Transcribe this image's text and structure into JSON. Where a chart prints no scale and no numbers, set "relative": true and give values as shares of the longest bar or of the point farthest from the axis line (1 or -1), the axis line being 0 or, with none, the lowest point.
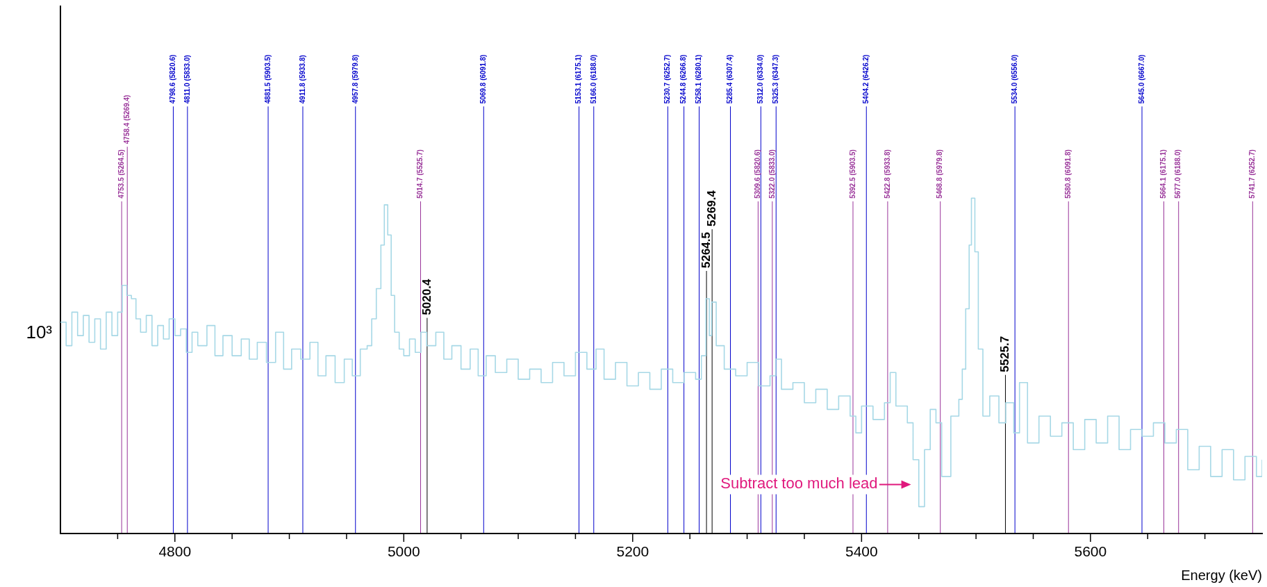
{
  "chart_data": {
    "type": "step",
    "xlabel": "Energy (keV)",
    "x": [
      4700,
      4705,
      4710,
      4715,
      4720,
      4725,
      4730,
      4735,
      4740,
      4745,
      4750,
      4754,
      4758,
      4762,
      4766,
      4770,
      4775,
      4780,
      4785,
      4790,
      4795,
      4800,
      4805,
      4810,
      4815,
      4820,
      4828,
      4835,
      4842,
      4850,
      4858,
      4865,
      4872,
      4880,
      4888,
      4895,
      4902,
      4910,
      4918,
      4925,
      4932,
      4940,
      4948,
      4955,
      4962,
      4968,
      4972,
      4976,
      4980,
      4983,
      4986,
      4989,
      4992,
      4996,
      5000,
      5005,
      5010,
      5015,
      5020,
      5028,
      5035,
      5042,
      5050,
      5058,
      5065,
      5072,
      5080,
      5090,
      5100,
      5110,
      5120,
      5130,
      5140,
      5150,
      5160,
      5168,
      5175,
      5185,
      5195,
      5205,
      5215,
      5225,
      5235,
      5245,
      5255,
      5260,
      5264,
      5267,
      5269,
      5273,
      5280,
      5290,
      5300,
      5310,
      5320,
      5325,
      5330,
      5340,
      5350,
      5360,
      5370,
      5380,
      5390,
      5395,
      5400,
      5410,
      5420,
      5425,
      5430,
      5440,
      5445,
      5450,
      5455,
      5460,
      5465,
      5470,
      5478,
      5485,
      5488,
      5491,
      5494,
      5496,
      5499,
      5502,
      5506,
      5512,
      5520,
      5526,
      5533,
      5538,
      5545,
      5555,
      5565,
      5575,
      5585,
      5595,
      5605,
      5615,
      5625,
      5635,
      5645,
      5655,
      5665,
      5675,
      5685,
      5695,
      5705,
      5715,
      5725,
      5735,
      5745,
      5750
    ],
    "series": [
      {
        "color": "#a6d8e6",
        "values": [
          0.63,
          0.56,
          0.66,
          0.59,
          0.65,
          0.57,
          0.64,
          0.55,
          0.66,
          0.59,
          0.66,
          0.74,
          0.71,
          0.7,
          0.64,
          0.6,
          0.65,
          0.56,
          0.62,
          0.58,
          0.64,
          0.59,
          0.61,
          0.54,
          0.6,
          0.56,
          0.62,
          0.53,
          0.59,
          0.53,
          0.58,
          0.52,
          0.57,
          0.51,
          0.6,
          0.49,
          0.55,
          0.52,
          0.57,
          0.47,
          0.53,
          0.45,
          0.52,
          0.47,
          0.55,
          0.56,
          0.64,
          0.73,
          0.86,
          0.98,
          0.89,
          0.71,
          0.6,
          0.55,
          0.53,
          0.58,
          0.54,
          0.6,
          0.56,
          0.6,
          0.52,
          0.56,
          0.49,
          0.55,
          0.47,
          0.53,
          0.48,
          0.52,
          0.46,
          0.49,
          0.45,
          0.51,
          0.47,
          0.54,
          0.49,
          0.55,
          0.46,
          0.51,
          0.44,
          0.48,
          0.43,
          0.49,
          0.45,
          0.48,
          0.46,
          0.53,
          0.7,
          0.59,
          0.69,
          0.56,
          0.49,
          0.47,
          0.51,
          0.44,
          0.47,
          0.52,
          0.43,
          0.45,
          0.39,
          0.43,
          0.37,
          0.41,
          0.35,
          0.3,
          0.38,
          0.34,
          0.39,
          0.48,
          0.38,
          0.33,
          0.22,
          0.08,
          0.25,
          0.37,
          0.33,
          0.17,
          0.35,
          0.4,
          0.49,
          0.67,
          0.86,
          1,
          0.84,
          0.55,
          0.35,
          0.41,
          0.33,
          0.39,
          0.3,
          0.45,
          0.27,
          0.35,
          0.29,
          0.33,
          0.25,
          0.34,
          0.27,
          0.35,
          0.25,
          0.31,
          0.29,
          0.33,
          0.27,
          0.31,
          0.19,
          0.26,
          0.17,
          0.25,
          0.16,
          0.23,
          0.17,
          0.22
        ]
      }
    ],
    "relative": true,
    "xlim": [
      4700,
      5750
    ],
    "xticks": [
      {
        "value": 4750,
        "label": null
      },
      4800,
      {
        "value": 4850,
        "label": null
      },
      {
        "value": 4900,
        "label": null
      },
      {
        "value": 4950,
        "label": null
      },
      5000,
      {
        "value": 5050,
        "label": null
      },
      {
        "value": 5100,
        "label": null
      },
      {
        "value": 5150,
        "label": null
      },
      5200,
      {
        "value": 5250,
        "label": null
      },
      {
        "value": 5300,
        "label": null
      },
      {
        "value": 5350,
        "label": null
      },
      5400,
      {
        "value": 5450,
        "label": null
      },
      {
        "value": 5500,
        "label": null
      },
      {
        "value": 5550,
        "label": null
      },
      5600,
      {
        "value": 5650,
        "label": null
      },
      {
        "value": 5700,
        "label": null
      }
    ],
    "grid": false,
    "legend": false,
    "marker": "none",
    "ref_lines": [
      {
        "axis": "x",
        "value": 4753.5,
        "label": "4753.5 (5264.5)",
        "color": "#993399"
      },
      {
        "axis": "x",
        "value": 4758.4,
        "label": "4758.4 (5269.4)",
        "color": "#993399"
      },
      {
        "axis": "x",
        "value": 4798.6,
        "label": "4798.6 (5820.6)",
        "color": "#0000cc"
      },
      {
        "axis": "x",
        "value": 4811.0,
        "label": "4811.0 (5833.0)",
        "color": "#0000cc"
      },
      {
        "axis": "x",
        "value": 4881.5,
        "label": "4881.5 (5903.5)",
        "color": "#0000cc"
      },
      {
        "axis": "x",
        "value": 4911.8,
        "label": "4911.8 (5933.8)",
        "color": "#0000cc"
      },
      {
        "axis": "x",
        "value": 4957.8,
        "label": "4957.8 (5979.8)",
        "color": "#0000cc"
      },
      {
        "axis": "x",
        "value": 5014.7,
        "label": "5014.7 (5525.7)",
        "color": "#993399"
      },
      {
        "axis": "x",
        "value": 5020.4,
        "label": "5020.4",
        "color": "#000000"
      },
      {
        "axis": "x",
        "value": 5069.8,
        "label": "5069.8 (6091.8)",
        "color": "#0000cc"
      },
      {
        "axis": "x",
        "value": 5153.1,
        "label": "5153.1 (6175.1)",
        "color": "#0000cc"
      },
      {
        "axis": "x",
        "value": 5166.0,
        "label": "5166.0 (6188.0)",
        "color": "#0000cc"
      },
      {
        "axis": "x",
        "value": 5230.7,
        "label": "5230.7 (6252.7)",
        "color": "#0000cc"
      },
      {
        "axis": "x",
        "value": 5244.8,
        "label": "5244.8 (6266.8)",
        "color": "#0000cc"
      },
      {
        "axis": "x",
        "value": 5258.1,
        "label": "5258.1 (6280.1)",
        "color": "#0000cc"
      },
      {
        "axis": "x",
        "value": 5264.5,
        "label": "5264.5",
        "color": "#000000"
      },
      {
        "axis": "x",
        "value": 5269.4,
        "label": "5269.4",
        "color": "#000000"
      },
      {
        "axis": "x",
        "value": 5285.4,
        "label": "5285.4 (6307.4)",
        "color": "#0000cc"
      },
      {
        "axis": "x",
        "value": 5309.6,
        "label": "5309.6 (5820.6)",
        "color": "#993399"
      },
      {
        "axis": "x",
        "value": 5312.0,
        "label": "5312.0 (6334.0)",
        "color": "#0000cc"
      },
      {
        "axis": "x",
        "value": 5322.0,
        "label": "5322.0 (5833.0)",
        "color": "#993399"
      },
      {
        "axis": "x",
        "value": 5325.3,
        "label": "5325.3 (6347.3)",
        "color": "#0000cc"
      },
      {
        "axis": "x",
        "value": 5392.5,
        "label": "5392.5 (5903.5)",
        "color": "#993399"
      },
      {
        "axis": "x",
        "value": 5404.2,
        "label": "5404.2 (6426.2)",
        "color": "#0000cc"
      },
      {
        "axis": "x",
        "value": 5422.8,
        "label": "5422.8 (5933.8)",
        "color": "#993399"
      },
      {
        "axis": "x",
        "value": 5468.8,
        "label": "5468.8 (5979.8)",
        "color": "#993399"
      },
      {
        "axis": "x",
        "value": 5525.7,
        "label": "5525.7",
        "color": "#000000"
      },
      {
        "axis": "x",
        "value": 5534.0,
        "label": "5534.0 (6556.0)",
        "color": "#0000cc"
      },
      {
        "axis": "x",
        "value": 5580.8,
        "label": "5580.8 (6091.8)",
        "color": "#993399"
      },
      {
        "axis": "x",
        "value": 5645.0,
        "label": "5645.0 (6667.0)",
        "color": "#0000cc"
      },
      {
        "axis": "x",
        "value": 5664.1,
        "label": "5664.1 (6175.1)",
        "color": "#993399"
      },
      {
        "axis": "x",
        "value": 5677.0,
        "label": "5677.0 (6188.0)",
        "color": "#993399"
      },
      {
        "axis": "x",
        "value": 5741.7,
        "label": "5741.7 (6252.7)",
        "color": "#993399"
      }
    ],
    "annotations": [
      "10³",
      "Subtract too much lead"
    ]
  }
}
